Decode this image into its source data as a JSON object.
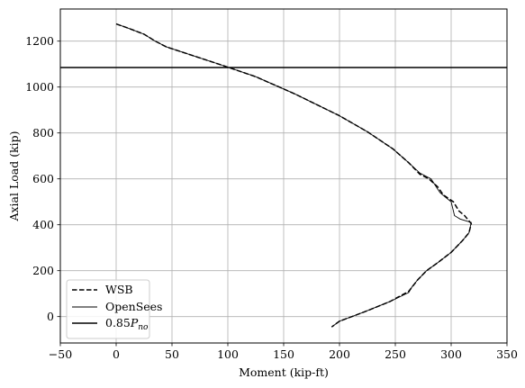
{
  "chart_data": {
    "type": "line",
    "title": "",
    "xlabel": "Moment (kip-ft)",
    "ylabel": "Axial Load (kip)",
    "xlim": [
      -50,
      350
    ],
    "ylim": [
      -115,
      1340
    ],
    "xticks": [
      -50,
      0,
      50,
      100,
      150,
      200,
      250,
      300,
      350
    ],
    "xtick_labels": [
      "−50",
      "0",
      "50",
      "100",
      "150",
      "200",
      "250",
      "300",
      "350"
    ],
    "yticks": [
      0,
      200,
      400,
      600,
      800,
      1000,
      1200
    ],
    "ytick_labels": [
      "0",
      "200",
      "400",
      "600",
      "800",
      "1000",
      "1200"
    ],
    "grid": true,
    "legend_position": "lower-left",
    "series": [
      {
        "name": "WSB",
        "style": "dashed",
        "color": "#000000",
        "x": [
          0,
          10,
          25,
          35,
          45,
          70,
          95,
          125,
          160,
          200,
          225,
          248,
          262,
          272,
          280,
          288,
          293,
          302,
          307,
          312,
          318,
          316,
          310,
          300,
          288,
          278,
          270,
          262,
          245,
          222,
          200,
          193
        ],
        "y": [
          1275,
          1258,
          1230,
          1200,
          1175,
          1135,
          1095,
          1045,
          970,
          875,
          805,
          730,
          670,
          620,
          600,
          565,
          530,
          500,
          460,
          440,
          405,
          365,
          330,
          280,
          235,
          200,
          160,
          110,
          65,
          20,
          -20,
          -45
        ]
      },
      {
        "name": "OpenSees",
        "style": "solid-thin",
        "color": "#000000",
        "x": [
          0,
          10,
          25,
          35,
          45,
          70,
          95,
          125,
          160,
          200,
          225,
          248,
          262,
          272,
          282,
          290,
          295,
          300,
          303,
          308,
          318,
          316,
          310,
          300,
          288,
          278,
          270,
          265,
          262,
          245,
          222,
          200,
          193
        ],
        "y": [
          1275,
          1258,
          1230,
          1200,
          1175,
          1135,
          1095,
          1045,
          970,
          875,
          805,
          730,
          670,
          625,
          600,
          540,
          520,
          500,
          440,
          425,
          410,
          365,
          330,
          280,
          235,
          200,
          160,
          130,
          105,
          65,
          20,
          -20,
          -45
        ]
      },
      {
        "name": "0.85P_no",
        "style": "solid-thick",
        "color": "#000000",
        "x": [
          -50,
          350
        ],
        "y": [
          1085,
          1085
        ]
      }
    ],
    "legend_labels": {
      "wsb": "WSB",
      "opensees": "OpenSees",
      "pno_main": "0.85",
      "pno_var": "P",
      "pno_sub": "no"
    }
  }
}
